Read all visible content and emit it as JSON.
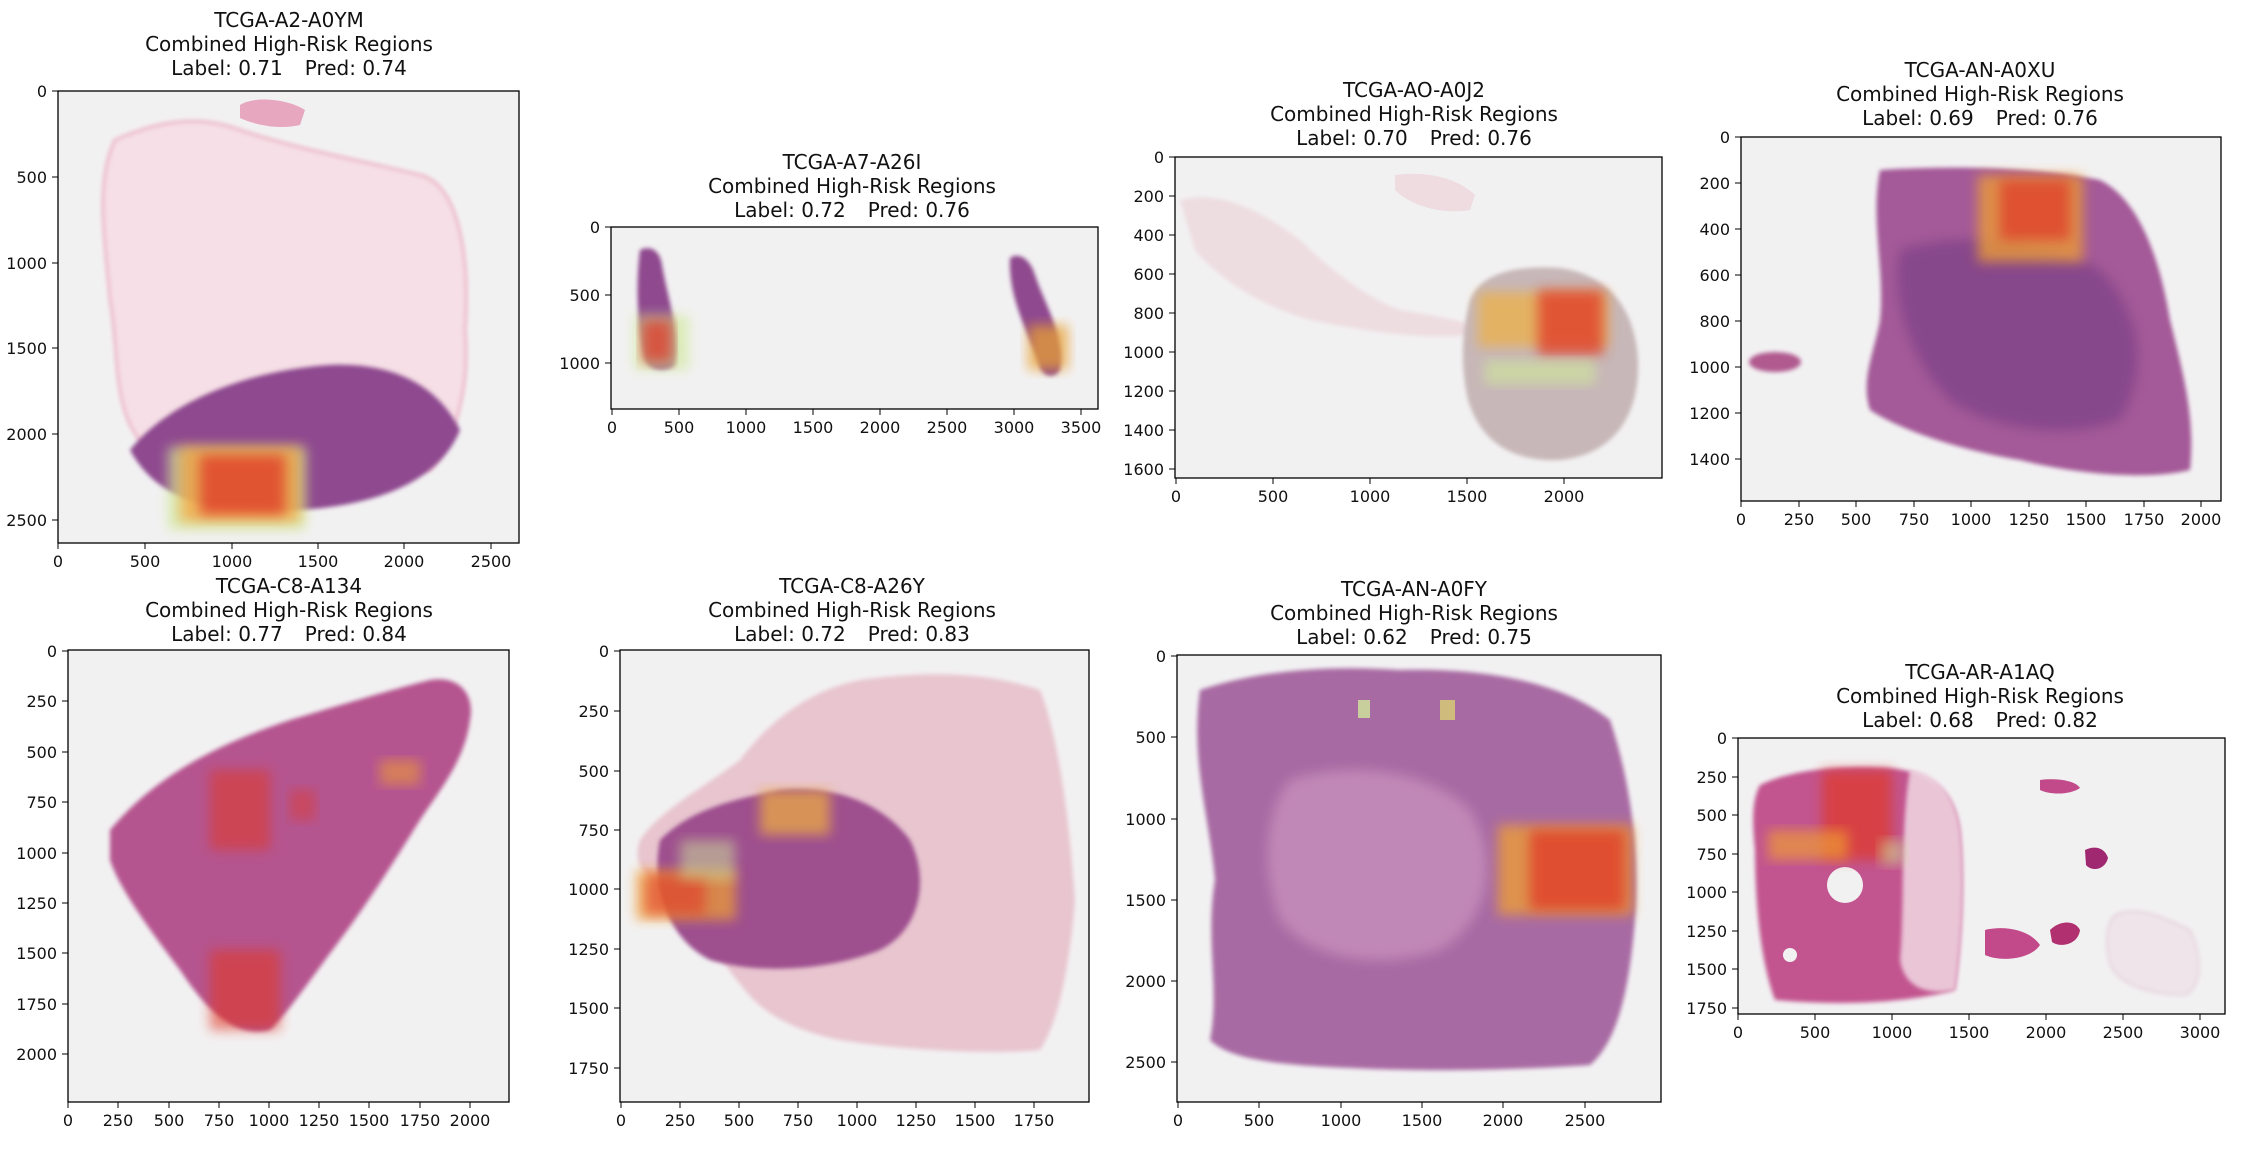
{
  "common": {
    "subtitle": "Combined High-Risk Regions"
  },
  "panels": [
    {
      "id": "TCGA-A2-A0YM",
      "label_text": "Label: 0.71",
      "pred_text": "Pred: 0.74",
      "x_ticks": [
        "0",
        "500",
        "1000",
        "1500",
        "2000",
        "2500"
      ],
      "y_ticks": [
        "0",
        "500",
        "1000",
        "1500",
        "2000",
        "2500"
      ]
    },
    {
      "id": "TCGA-A7-A26I",
      "label_text": "Label: 0.72",
      "pred_text": "Pred: 0.76",
      "x_ticks": [
        "0",
        "500",
        "1000",
        "1500",
        "2000",
        "2500",
        "3000",
        "3500"
      ],
      "y_ticks": [
        "0",
        "500",
        "1000"
      ]
    },
    {
      "id": "TCGA-AO-A0J2",
      "label_text": "Label: 0.70",
      "pred_text": "Pred: 0.76",
      "x_ticks": [
        "0",
        "500",
        "1000",
        "1500",
        "2000"
      ],
      "y_ticks": [
        "0",
        "200",
        "400",
        "600",
        "800",
        "1000",
        "1200",
        "1400",
        "1600"
      ]
    },
    {
      "id": "TCGA-AN-A0XU",
      "label_text": "Label: 0.69",
      "pred_text": "Pred: 0.76",
      "x_ticks": [
        "0",
        "250",
        "500",
        "750",
        "1000",
        "1250",
        "1500",
        "1750",
        "2000"
      ],
      "y_ticks": [
        "0",
        "200",
        "400",
        "600",
        "800",
        "1000",
        "1200",
        "1400"
      ]
    },
    {
      "id": "TCGA-C8-A134",
      "label_text": "Label: 0.77",
      "pred_text": "Pred: 0.84",
      "x_ticks": [
        "0",
        "250",
        "500",
        "750",
        "1000",
        "1250",
        "1500",
        "1750",
        "2000"
      ],
      "y_ticks": [
        "0",
        "250",
        "500",
        "750",
        "1000",
        "1250",
        "1500",
        "1750",
        "2000"
      ]
    },
    {
      "id": "TCGA-C8-A26Y",
      "label_text": "Label: 0.72",
      "pred_text": "Pred: 0.83",
      "x_ticks": [
        "0",
        "250",
        "500",
        "750",
        "1000",
        "1250",
        "1500",
        "1750"
      ],
      "y_ticks": [
        "0",
        "250",
        "500",
        "750",
        "1000",
        "1250",
        "1500",
        "1750"
      ]
    },
    {
      "id": "TCGA-AN-A0FY",
      "label_text": "Label: 0.62",
      "pred_text": "Pred: 0.75",
      "x_ticks": [
        "0",
        "500",
        "1000",
        "1500",
        "2000",
        "2500"
      ],
      "y_ticks": [
        "0",
        "500",
        "1000",
        "1500",
        "2000",
        "2500"
      ]
    },
    {
      "id": "TCGA-AR-A1AQ",
      "label_text": "Label: 0.68",
      "pred_text": "Pred: 0.82",
      "x_ticks": [
        "0",
        "500",
        "1000",
        "1500",
        "2000",
        "2500",
        "3000"
      ],
      "y_ticks": [
        "0",
        "250",
        "500",
        "750",
        "1000",
        "1250",
        "1500",
        "1750"
      ]
    }
  ]
}
